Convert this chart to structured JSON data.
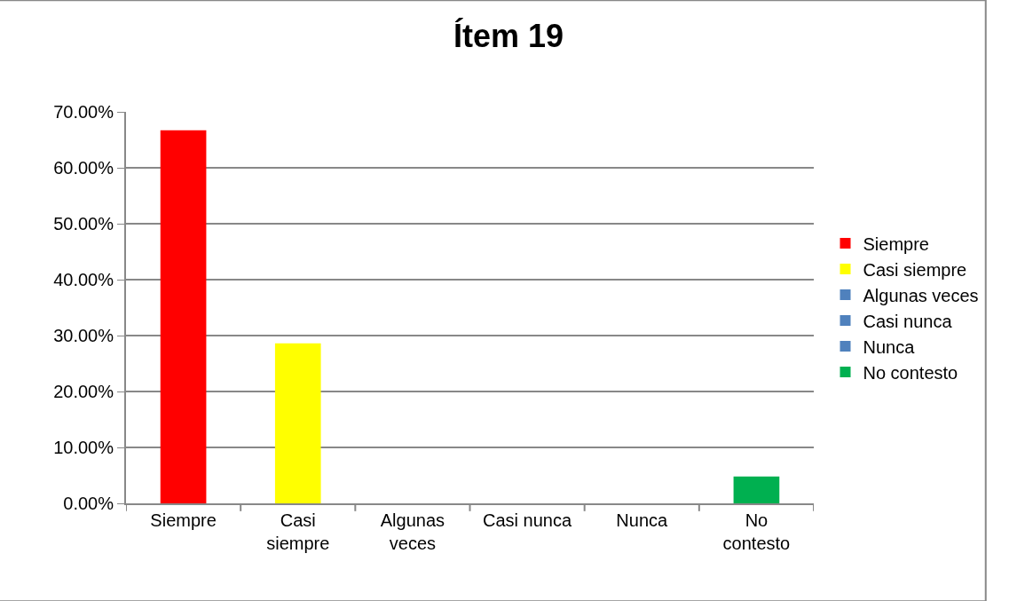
{
  "chart_data": {
    "type": "bar",
    "title": "Ítem 19",
    "categories": [
      "Siempre",
      "Casi\nsiempre",
      "Algunas\nveces",
      "Casi nunca",
      "Nunca",
      "No\ncontesto"
    ],
    "series": [
      {
        "name": "Siempre",
        "color": "#ff0000",
        "values": [
          66.7,
          null,
          null,
          null,
          null,
          null
        ]
      },
      {
        "name": "Casi siempre",
        "color": "#ffff00",
        "values": [
          null,
          28.6,
          null,
          null,
          null,
          null
        ]
      },
      {
        "name": "Algunas veces",
        "color": "#4f81bd",
        "values": [
          null,
          null,
          0,
          null,
          null,
          null
        ]
      },
      {
        "name": "Casi nunca",
        "color": "#4f81bd",
        "values": [
          null,
          null,
          null,
          0,
          null,
          null
        ]
      },
      {
        "name": "Nunca",
        "color": "#4f81bd",
        "values": [
          null,
          null,
          null,
          null,
          0,
          null
        ]
      },
      {
        "name": "No contesto",
        "color": "#00b050",
        "values": [
          null,
          null,
          null,
          null,
          null,
          4.8
        ]
      }
    ],
    "ylim": [
      0,
      70
    ],
    "yticks": [
      {
        "value": 0,
        "label": "0.00%"
      },
      {
        "value": 10,
        "label": "10.00%"
      },
      {
        "value": 20,
        "label": "20.00%"
      },
      {
        "value": 30,
        "label": "30.00%"
      },
      {
        "value": 40,
        "label": "40.00%"
      },
      {
        "value": 50,
        "label": "50.00%"
      },
      {
        "value": 60,
        "label": "60.00%"
      },
      {
        "value": 70,
        "label": "70.00%"
      }
    ],
    "grid": "y",
    "legend": "right"
  }
}
